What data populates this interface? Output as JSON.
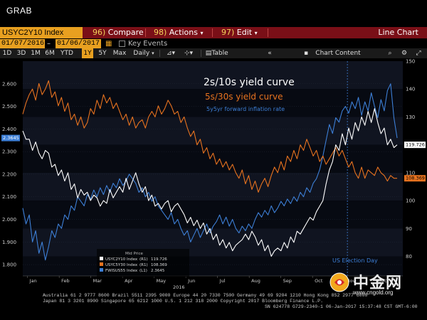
{
  "window": {
    "title": "GRAB"
  },
  "menubar": {
    "ticker": "USYC2Y10 Index",
    "items": [
      {
        "num": "96)",
        "label": "Compare"
      },
      {
        "num": "98)",
        "label": "Actions"
      },
      {
        "num": "97)",
        "label": "Edit"
      }
    ],
    "view": "Line Chart"
  },
  "datebar": {
    "start": "01/07/2016",
    "end": "01/06/2017",
    "key_events": "Key Events"
  },
  "toolbar": {
    "periods": [
      "1D",
      "3D",
      "1M",
      "6M",
      "YTD",
      "1Y",
      "5Y",
      "Max"
    ],
    "active_period": "1Y",
    "frequency": "Daily",
    "table": "Table",
    "chart_content": "Chart Content"
  },
  "chart_data": {
    "type": "line",
    "annotations": [
      "2s/10s yield curve",
      "5s/30s yield curve",
      "5y5yr forward inflation rate",
      "US Election Day"
    ],
    "x_ticks": [
      "Jan",
      "Feb",
      "Mar",
      "Apr",
      "May",
      "Jun",
      "Jul",
      "Aug",
      "Sep",
      "Oct",
      "Nov",
      "Dec"
    ],
    "x_year_label": "2016",
    "left_axis": {
      "range": [
        1.75,
        2.7
      ],
      "ticks": [
        "2.600",
        "2.500",
        "2.400",
        "2.300",
        "2.200",
        "2.100",
        "2.000",
        "1.900",
        "1.800"
      ]
    },
    "right_axis": {
      "range": [
        73,
        150
      ],
      "ticks": [
        "150",
        "140",
        "130",
        "120",
        "110",
        "100",
        "90",
        "80"
      ]
    },
    "legend": {
      "header": "Mid Price",
      "entries": [
        {
          "name": "USYC2Y10 Index",
          "axis": "(R1)",
          "value": "119.726",
          "color": "#ffffff"
        },
        {
          "name": "USYC5Y30 Index",
          "axis": "(R1)",
          "value": "108.369",
          "color": "#e8731f"
        },
        {
          "name": "FWISUS55 Index",
          "axis": "(L1)",
          "value": "2.3645",
          "color": "#3d7fd6"
        }
      ]
    },
    "last_values": {
      "white": "119.726",
      "orange": "108.369",
      "blue": "2.3645"
    },
    "series": [
      {
        "name": "USYC2Y10 Index",
        "color": "#ffffff",
        "axis": "right",
        "values": [
          125,
          122,
          122,
          118,
          121,
          117,
          115,
          118,
          117,
          112,
          113,
          109,
          111,
          107,
          110,
          104,
          106,
          101,
          104,
          102,
          103,
          100,
          102,
          101,
          98,
          100,
          99,
          104,
          101,
          103,
          105,
          103,
          108,
          104,
          107,
          110,
          106,
          103,
          105,
          100,
          102,
          98,
          99,
          97,
          99,
          100,
          96,
          98,
          99,
          97,
          95,
          92,
          94,
          91,
          93,
          90,
          92,
          88,
          90,
          86,
          88,
          84,
          86,
          83,
          85,
          82,
          84,
          85,
          86,
          88,
          86,
          89,
          87,
          84,
          86,
          82,
          84,
          80,
          82,
          83,
          82,
          85,
          83,
          87,
          85,
          89,
          88,
          90,
          92,
          94,
          93,
          96,
          98,
          100,
          106,
          111,
          114,
          120,
          118,
          124,
          120,
          126,
          122,
          128,
          125,
          130,
          127,
          132,
          128,
          133,
          128,
          124,
          126,
          120,
          122,
          119,
          120
        ]
      },
      {
        "name": "USYC5Y30 Index",
        "color": "#e8731f",
        "axis": "right",
        "values": [
          131,
          135,
          138,
          140,
          136,
          142,
          138,
          140,
          143,
          137,
          139,
          134,
          137,
          132,
          135,
          129,
          131,
          127,
          130,
          126,
          128,
          133,
          131,
          136,
          133,
          138,
          135,
          137,
          133,
          135,
          132,
          129,
          131,
          127,
          130,
          126,
          128,
          129,
          126,
          130,
          132,
          130,
          134,
          131,
          133,
          136,
          134,
          131,
          132,
          128,
          130,
          126,
          123,
          125,
          120,
          122,
          117,
          119,
          115,
          117,
          113,
          115,
          112,
          114,
          111,
          113,
          110,
          108,
          111,
          106,
          109,
          104,
          107,
          103,
          106,
          108,
          105,
          109,
          112,
          110,
          114,
          111,
          116,
          114,
          118,
          115,
          120,
          118,
          122,
          119,
          116,
          118,
          114,
          116,
          113,
          115,
          117,
          119,
          116,
          118,
          115,
          112,
          114,
          110,
          108,
          112,
          108,
          111,
          110,
          109,
          112,
          110,
          109,
          107,
          109,
          108,
          108
        ]
      },
      {
        "name": "FWISUS55 Index",
        "color": "#3d7fd6",
        "axis": "left",
        "values": [
          2.05,
          1.98,
          2.02,
          1.9,
          1.95,
          1.85,
          1.9,
          1.82,
          1.88,
          1.95,
          1.92,
          1.98,
          1.96,
          2.02,
          2.0,
          2.06,
          2.04,
          2.1,
          2.08,
          2.06,
          2.11,
          2.09,
          2.13,
          2.1,
          2.14,
          2.11,
          2.15,
          2.12,
          2.16,
          2.14,
          2.18,
          2.15,
          2.17,
          2.2,
          2.18,
          2.16,
          2.12,
          2.14,
          2.1,
          2.12,
          2.08,
          2.1,
          2.06,
          2.04,
          2.02,
          2.0,
          2.03,
          1.98,
          2.0,
          1.96,
          1.93,
          1.95,
          1.9,
          1.93,
          1.96,
          1.92,
          1.95,
          1.98,
          1.94,
          1.97,
          1.99,
          2.02,
          1.98,
          2.01,
          1.97,
          2.0,
          1.96,
          1.94,
          1.97,
          1.95,
          1.98,
          1.96,
          2.0,
          2.03,
          2.01,
          2.04,
          2.02,
          2.06,
          2.03,
          2.05,
          2.08,
          2.06,
          2.09,
          2.07,
          2.1,
          2.08,
          2.12,
          2.1,
          2.14,
          2.12,
          2.16,
          2.18,
          2.22,
          2.28,
          2.35,
          2.42,
          2.38,
          2.45,
          2.43,
          2.48,
          2.5,
          2.47,
          2.52,
          2.49,
          2.54,
          2.46,
          2.52,
          2.48,
          2.56,
          2.5,
          2.45,
          2.53,
          2.48,
          2.57,
          2.6,
          2.45,
          2.36
        ]
      }
    ]
  },
  "footer": {
    "line1": "Australia 61 2 9777 8600 Brazil 5511 2395 9000 Europe 44 20 7330 7500 Germany 49 69 9204 1210 Hong Kong 852 2977 6000",
    "line2": "Japan 81 3 3201 8900          Singapore 65 6212 1000          U.S. 1 212 318 2000          Copyright 2017 Bloomberg Finance L.P.",
    "line3": "SN 624778 G729-2340-1 06-Jan-2017 15:37:48 CST GMT-6:00"
  },
  "watermark": {
    "brand": "中金网",
    "url": "www.cngold.org"
  }
}
